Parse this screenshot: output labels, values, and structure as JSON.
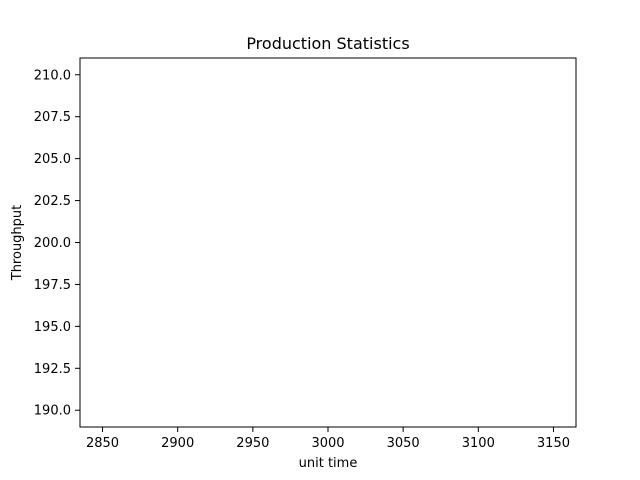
{
  "chart_data": {
    "type": "line",
    "title": "Production Statistics",
    "xlabel": "unit time",
    "ylabel": "Throughput",
    "xlim": [
      2835,
      3165
    ],
    "ylim": [
      189.0,
      211.0
    ],
    "x_ticks": [
      2850,
      2900,
      2950,
      3000,
      3050,
      3100,
      3150
    ],
    "x_tick_labels": [
      "2850",
      "2900",
      "2950",
      "3000",
      "3050",
      "3100",
      "3150"
    ],
    "y_ticks": [
      190.0,
      192.5,
      195.0,
      197.5,
      200.0,
      202.5,
      205.0,
      207.5,
      210.0
    ],
    "y_tick_labels": [
      "190.0",
      "192.5",
      "195.0",
      "197.5",
      "200.0",
      "202.5",
      "205.0",
      "207.5",
      "210.0"
    ],
    "series": [],
    "grid": false,
    "legend": "none",
    "colors": {
      "axes": "#000000",
      "background": "#ffffff"
    }
  }
}
